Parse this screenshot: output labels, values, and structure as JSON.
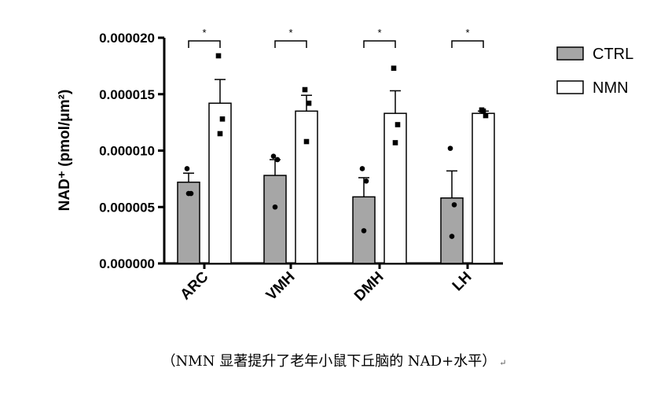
{
  "chart_data": {
    "type": "bar",
    "categories": [
      "ARC",
      "VMH",
      "DMH",
      "LH"
    ],
    "ylabel": "NAD⁺ (pmol/μm²)",
    "ylim": [
      0,
      2e-05
    ],
    "yticks": [
      0.0,
      5e-06,
      1e-05,
      1.5e-05,
      2e-05
    ],
    "ytick_labels": [
      "0.000000",
      "0.000005",
      "0.000010",
      "0.000015",
      "0.000020"
    ],
    "series": [
      {
        "name": "CTRL",
        "color": "#a6a6a6",
        "values": [
          7.2e-06,
          7.8e-06,
          5.9e-06,
          5.8e-06
        ],
        "errors": [
          8e-07,
          1.4e-06,
          1.7e-06,
          2.4e-06
        ],
        "points": [
          [
            8.4e-06,
            6.2e-06,
            6.2e-06
          ],
          [
            9.5e-06,
            9.2e-06,
            5e-06
          ],
          [
            8.4e-06,
            7.3e-06,
            2.9e-06
          ],
          [
            1.02e-05,
            5.2e-06,
            2.4e-06
          ]
        ],
        "marker": "circle"
      },
      {
        "name": "NMN",
        "color": "#ffffff",
        "values": [
          1.42e-05,
          1.35e-05,
          1.33e-05,
          1.33e-05
        ],
        "errors": [
          2.1e-06,
          1.4e-06,
          2e-06,
          2e-07
        ],
        "points": [
          [
            1.84e-05,
            1.28e-05,
            1.15e-05
          ],
          [
            1.54e-05,
            1.42e-05,
            1.08e-05
          ],
          [
            1.73e-05,
            1.23e-05,
            1.07e-05
          ],
          [
            1.36e-05,
            1.31e-05,
            1.35e-05
          ]
        ],
        "marker": "square"
      }
    ],
    "significance": [
      "*",
      "*",
      "*",
      "*"
    ],
    "legend_position": "top-right",
    "grid": false
  },
  "caption": {
    "text": "（NMN 显著提升了老年小鼠下丘脑的 NAD+水平）",
    "mark": "↵"
  }
}
